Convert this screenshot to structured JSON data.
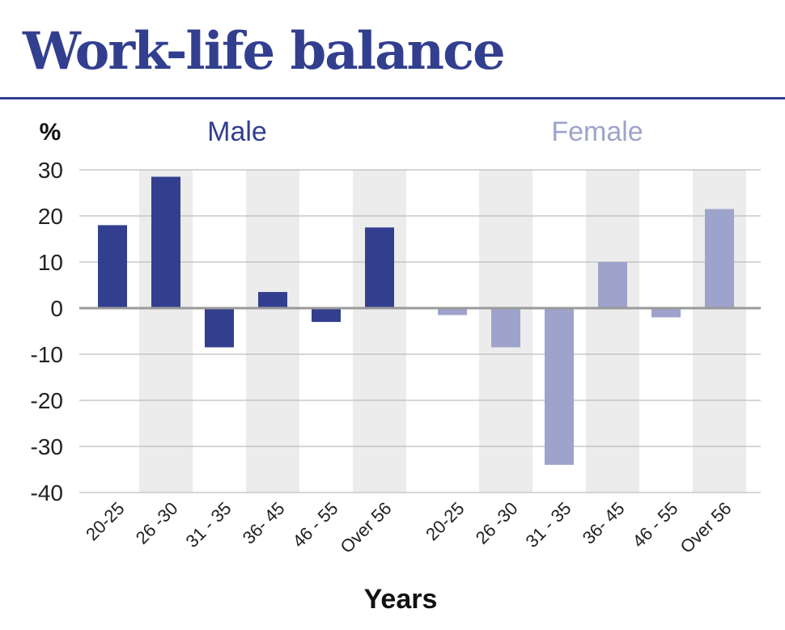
{
  "title": "Work-life balance",
  "colors": {
    "male": "#323f8f",
    "female": "#9ea3cb",
    "band": "#ececec",
    "title": "#323f8f"
  },
  "chart_data": {
    "type": "bar",
    "ylabel": "%",
    "xlabel": "Years",
    "ylim": [
      -40,
      30
    ],
    "yticks": [
      30,
      20,
      10,
      0,
      -10,
      -20,
      -30,
      -40
    ],
    "grid": true,
    "groups": [
      {
        "name": "Male",
        "categories": [
          "20-25",
          "26 -30",
          "31 - 35",
          "36- 45",
          "46 - 55",
          "Over 56"
        ],
        "values": [
          18,
          28.5,
          -8.5,
          3.5,
          -3,
          17.5
        ]
      },
      {
        "name": "Female",
        "categories": [
          "20-25",
          "26 -30",
          "31 - 35",
          "36- 45",
          "46 - 55",
          "Over 56"
        ],
        "values": [
          -1.5,
          -8.5,
          -34,
          10,
          -2,
          21.5
        ]
      }
    ]
  }
}
